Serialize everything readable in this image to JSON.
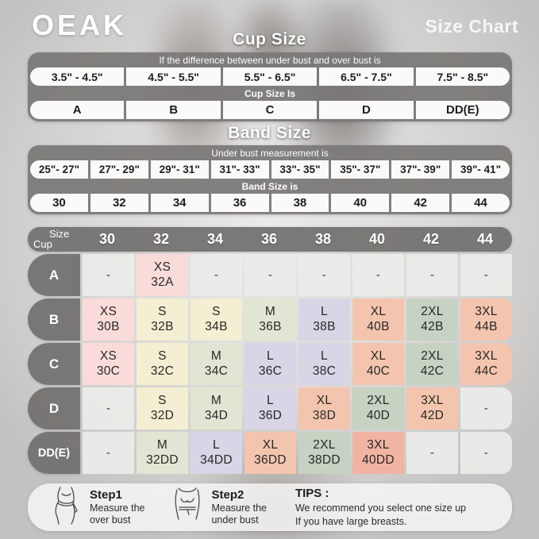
{
  "brand": "OEAK",
  "page_title": "Size Chart",
  "cup_section": {
    "title": "Cup Size",
    "condition_label": "If the difference between under bust and over bust is",
    "ranges": [
      "3.5\" - 4.5\"",
      "4.5\" - 5.5\"",
      "5.5\" - 6.5\"",
      "6.5\" - 7.5\"",
      "7.5\" - 8.5\""
    ],
    "result_label": "Cup Size Is",
    "cups": [
      "A",
      "B",
      "C",
      "D",
      "DD(E)"
    ]
  },
  "band_section": {
    "title": "Band Size",
    "condition_label": "Under bust measurement is",
    "ranges": [
      "25\"- 27\"",
      "27\"- 29\"",
      "29\"- 31\"",
      "31\"- 33\"",
      "33\"- 35\"",
      "35\"- 37\"",
      "37\"- 39\"",
      "39\"- 41\""
    ],
    "result_label": "Band Size is",
    "bands": [
      "30",
      "32",
      "34",
      "36",
      "38",
      "40",
      "42",
      "44"
    ]
  },
  "matrix": {
    "corner_top": "Size",
    "corner_bottom": "Cup",
    "columns": [
      "30",
      "32",
      "34",
      "36",
      "38",
      "40",
      "42",
      "44"
    ],
    "rows": [
      {
        "cup": "A",
        "cells": [
          {
            "t": "-"
          },
          {
            "t": "XS",
            "c": "32A",
            "k": "pink"
          },
          {
            "t": "-"
          },
          {
            "t": "-"
          },
          {
            "t": "-"
          },
          {
            "t": "-"
          },
          {
            "t": "-"
          },
          {
            "t": "-"
          }
        ]
      },
      {
        "cup": "B",
        "cells": [
          {
            "t": "XS",
            "c": "30B",
            "k": "pink"
          },
          {
            "t": "S",
            "c": "32B",
            "k": "cream"
          },
          {
            "t": "S",
            "c": "34B",
            "k": "cream"
          },
          {
            "t": "M",
            "c": "36B",
            "k": "green_light"
          },
          {
            "t": "L",
            "c": "38B",
            "k": "lavender"
          },
          {
            "t": "XL",
            "c": "40B",
            "k": "salmon"
          },
          {
            "t": "2XL",
            "c": "42B",
            "k": "green_sage"
          },
          {
            "t": "3XL",
            "c": "44B",
            "k": "salmon"
          }
        ]
      },
      {
        "cup": "C",
        "cells": [
          {
            "t": "XS",
            "c": "30C",
            "k": "pink"
          },
          {
            "t": "S",
            "c": "32C",
            "k": "cream"
          },
          {
            "t": "M",
            "c": "34C",
            "k": "green_light"
          },
          {
            "t": "L",
            "c": "36C",
            "k": "lavender"
          },
          {
            "t": "L",
            "c": "38C",
            "k": "lavender"
          },
          {
            "t": "XL",
            "c": "40C",
            "k": "salmon"
          },
          {
            "t": "2XL",
            "c": "42C",
            "k": "green_sage"
          },
          {
            "t": "3XL",
            "c": "44C",
            "k": "salmon"
          }
        ]
      },
      {
        "cup": "D",
        "cells": [
          {
            "t": "-"
          },
          {
            "t": "S",
            "c": "32D",
            "k": "cream"
          },
          {
            "t": "M",
            "c": "34D",
            "k": "green_light"
          },
          {
            "t": "L",
            "c": "36D",
            "k": "lavender"
          },
          {
            "t": "XL",
            "c": "38D",
            "k": "salmon"
          },
          {
            "t": "2XL",
            "c": "40D",
            "k": "green_sage"
          },
          {
            "t": "3XL",
            "c": "42D",
            "k": "salmon"
          },
          {
            "t": "-"
          }
        ]
      },
      {
        "cup": "DD(E)",
        "cells": [
          {
            "t": "-"
          },
          {
            "t": "M",
            "c": "32DD",
            "k": "green_light"
          },
          {
            "t": "L",
            "c": "34DD",
            "k": "lavender"
          },
          {
            "t": "XL",
            "c": "36DD",
            "k": "salmon"
          },
          {
            "t": "2XL",
            "c": "38DD",
            "k": "green_sage"
          },
          {
            "t": "3XL",
            "c": "40DD",
            "k": "salmon_deep"
          },
          {
            "t": "-"
          },
          {
            "t": "-"
          }
        ]
      }
    ]
  },
  "footer": {
    "steps": [
      {
        "label": "Step1",
        "lines": [
          "Measure the",
          "over bust"
        ]
      },
      {
        "label": "Step2",
        "lines": [
          "Measure the",
          "under bust"
        ]
      }
    ],
    "tips_label": "TIPS :",
    "tips_lines": [
      "We recommend you select one size up",
      "If you have large breasts."
    ]
  },
  "colors": {
    "pink": "#f9dcd9",
    "cream": "#f4efd2",
    "green_light": "#e1e6d4",
    "green_sage": "#c6d2c2",
    "lavender": "#d9d5e6",
    "salmon": "#f4c5ae",
    "salmon_deep": "#f2b4a2",
    "empty": "#eceae8",
    "dark_bar": "#797775"
  }
}
